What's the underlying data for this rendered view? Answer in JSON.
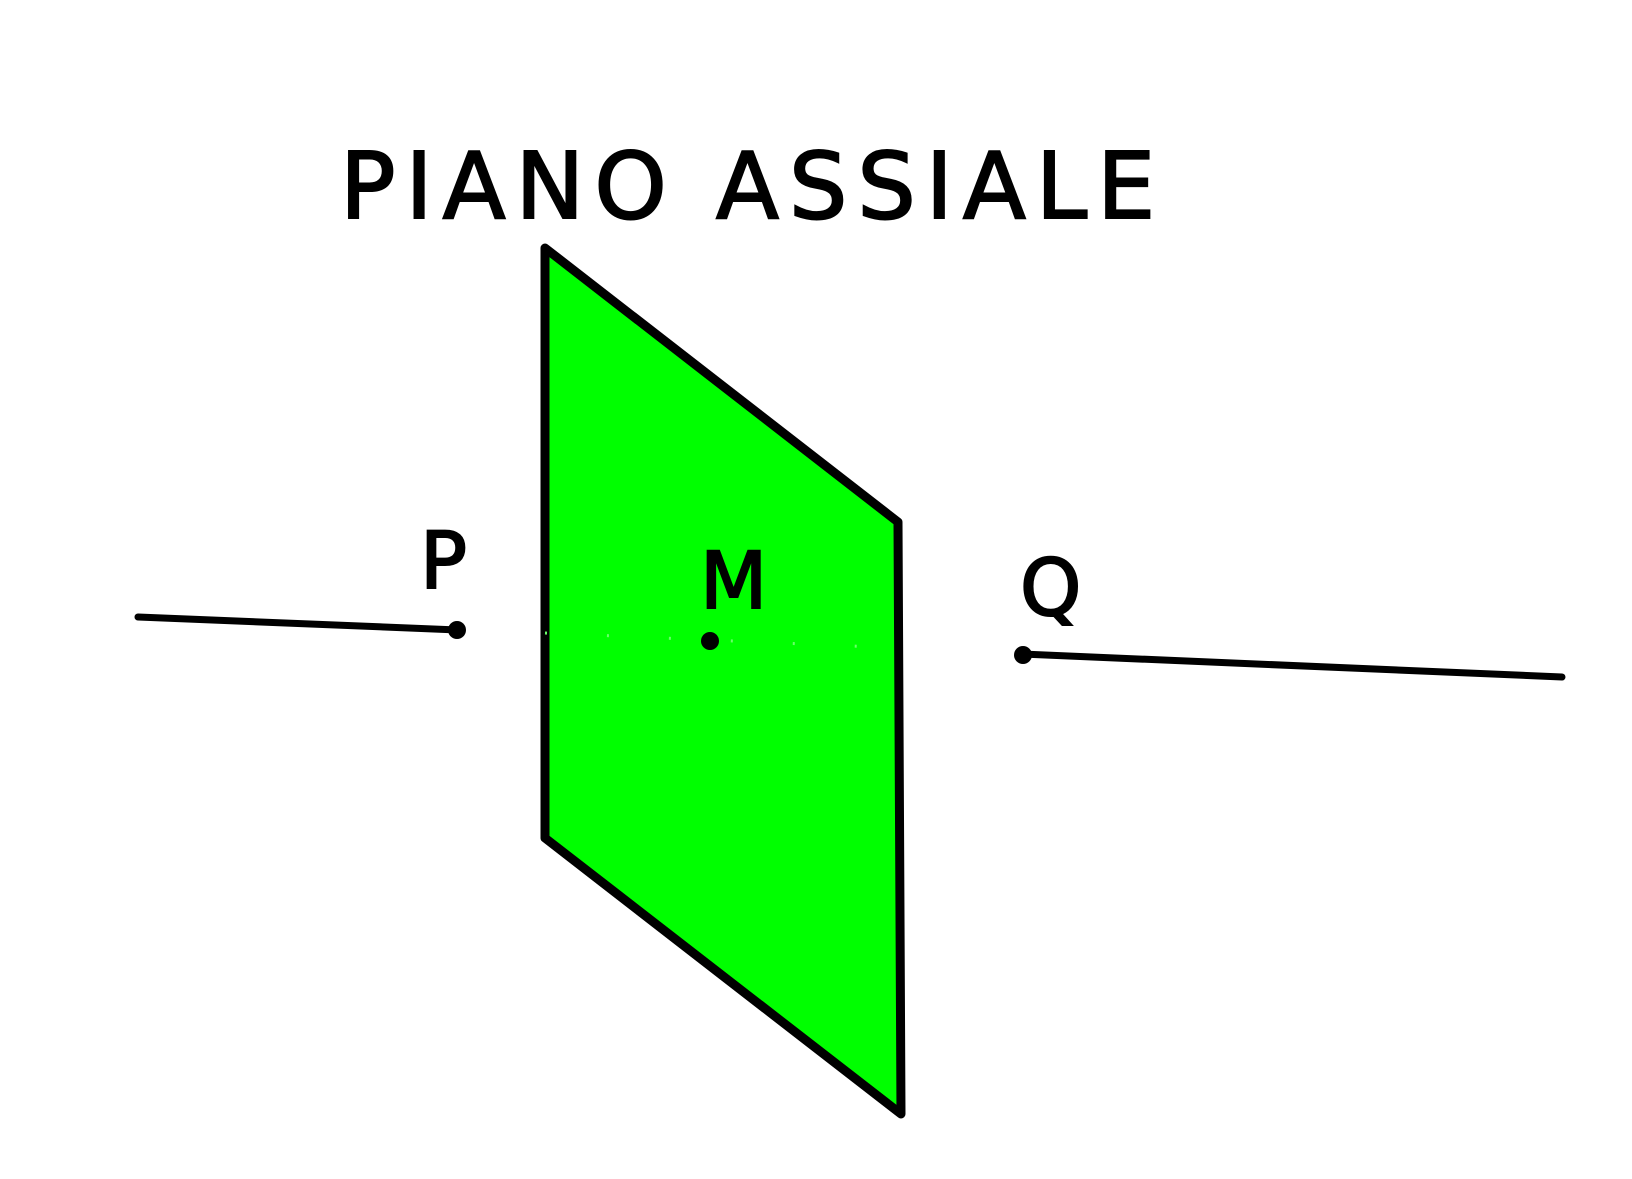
{
  "diagram": {
    "title": "PIANO ASSIALE",
    "labels": {
      "p": "P",
      "m": "M",
      "q": "Q"
    },
    "colors": {
      "plane_fill": "#00ff00",
      "stroke": "#000000",
      "background": "#ffffff"
    }
  }
}
